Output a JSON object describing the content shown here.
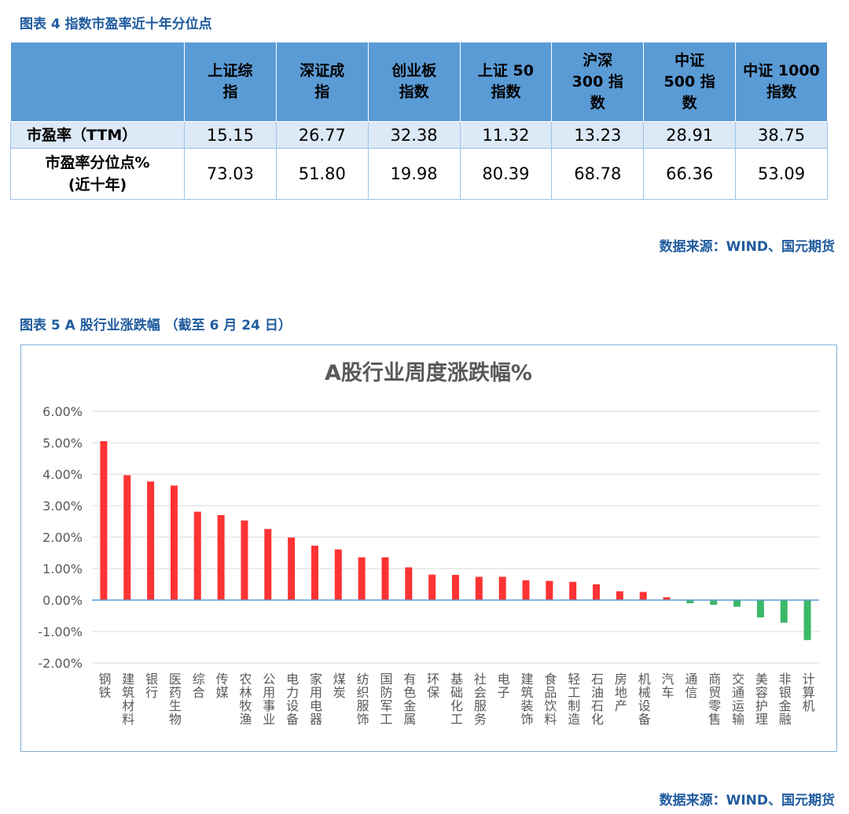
{
  "fig4": {
    "title": "图表 4 指数市盈率近十年分位点",
    "columns": [
      [
        "上证综",
        "指"
      ],
      [
        "深证成",
        "指"
      ],
      [
        "创业板",
        "指数"
      ],
      [
        "上证 50",
        "指数"
      ],
      [
        "沪深",
        "300 指",
        "数"
      ],
      [
        "中证",
        "500 指",
        "数"
      ],
      [
        "中证 1000",
        "指数"
      ]
    ],
    "rows": [
      {
        "label": [
          "市盈率（TTM）"
        ],
        "values": [
          "15.15",
          "26.77",
          "32.38",
          "11.32",
          "13.23",
          "28.91",
          "38.75"
        ]
      },
      {
        "label": [
          "市盈率分位点%",
          "(近十年)"
        ],
        "values": [
          "73.03",
          "51.80",
          "19.98",
          "80.39",
          "68.78",
          "66.36",
          "53.09"
        ]
      }
    ],
    "source": "数据来源：WIND、国元期货"
  },
  "fig5": {
    "title": "图表 5 A 股行业涨跌幅 （截至 6 月 24 日）",
    "source": "数据来源：WIND、国元期货",
    "colors": {
      "positive": "#ff3333",
      "negative": "#3cb86a",
      "axis": "#5b9bd5",
      "grid": "#d9d9d9"
    }
  },
  "chart_data": {
    "type": "bar",
    "title": "A股行业周度涨跌幅%",
    "ylim": [
      -2,
      6
    ],
    "yticks": [
      "6.00%",
      "5.00%",
      "4.00%",
      "3.00%",
      "2.00%",
      "1.00%",
      "0.00%",
      "-1.00%",
      "-2.00%"
    ],
    "grid": true,
    "categories": [
      "钢铁",
      "建筑材料",
      "银行",
      "医药生物",
      "综合",
      "传媒",
      "农林牧渔",
      "公用事业",
      "电力设备",
      "家用电器",
      "煤炭",
      "纺织服饰",
      "国防军工",
      "有色金属",
      "环保",
      "基础化工",
      "社会服务",
      "电子",
      "建筑装饰",
      "食品饮料",
      "轻工制造",
      "石油石化",
      "房地产",
      "机械设备",
      "汽车",
      "通信",
      "商贸零售",
      "交通运输",
      "美容护理",
      "非银金融",
      "计算机"
    ],
    "values": [
      5.05,
      3.97,
      3.77,
      3.64,
      2.81,
      2.7,
      2.53,
      2.26,
      1.99,
      1.73,
      1.61,
      1.36,
      1.36,
      1.04,
      0.81,
      0.8,
      0.74,
      0.74,
      0.63,
      0.61,
      0.58,
      0.5,
      0.28,
      0.26,
      0.09,
      -0.1,
      -0.15,
      -0.21,
      -0.55,
      -0.72,
      -1.27
    ]
  }
}
